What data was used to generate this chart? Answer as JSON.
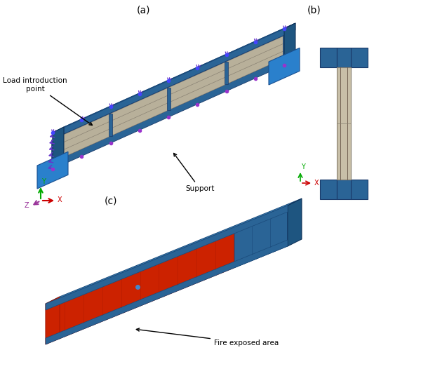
{
  "bg_color": "#ffffff",
  "blue_color": "#2a6496",
  "blue_light": "#4a90c4",
  "blue_dark": "#1a4a7a",
  "gray_color": "#c8c0a8",
  "gray_dark": "#8a8070",
  "red_color": "#cc2200",
  "red_dark": "#991100",
  "text_color": "#000000",
  "label_a": "(a)",
  "label_b": "(b)",
  "label_c": "(c)",
  "ann_load": "Load introduction\npoint",
  "ann_support": "Support",
  "ann_fire": "Fire exposed area",
  "axis_colors": {
    "X": "#cc0000",
    "Y": "#00aa00",
    "Z": "#aa00aa"
  }
}
